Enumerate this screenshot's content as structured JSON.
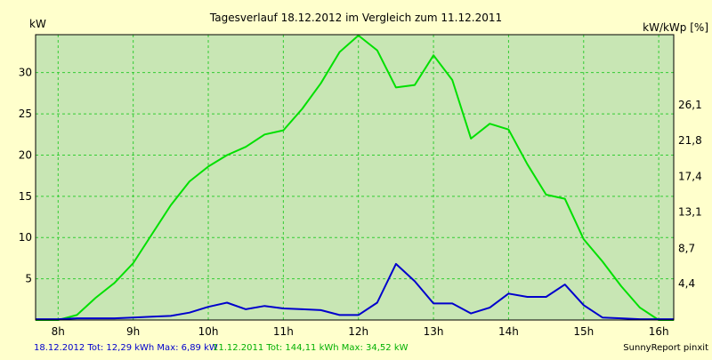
{
  "chart_data": {
    "type": "line",
    "title": "Tagesverlauf 18.12.2012 im Vergleich zum 11.12.2011",
    "ylabel_left": "kW",
    "ylabel_right": "kW/kWp [%]",
    "xlim": [
      7.7,
      16.2
    ],
    "ylim": [
      0,
      34.6
    ],
    "x_ticks": [
      8,
      9,
      10,
      11,
      12,
      13,
      14,
      15,
      16
    ],
    "x_tick_labels": [
      "8h",
      "9h",
      "10h",
      "11h",
      "12h",
      "13h",
      "14h",
      "15h",
      "16h"
    ],
    "y_ticks_left": [
      5,
      10,
      15,
      20,
      25,
      30
    ],
    "y_tick_labels_left": [
      "5",
      "10",
      "15",
      "20",
      "25",
      "30"
    ],
    "y_ticks_right_kw": [
      4.4,
      8.7,
      13.1,
      17.4,
      21.8,
      26.1
    ],
    "y_tick_labels_right": [
      "4,4",
      "8,7",
      "13,1",
      "17,4",
      "21,8",
      "26,1"
    ],
    "grid": true,
    "colors": {
      "background": "#ffffcc",
      "plot_background": "#c8e6b4",
      "grid": "#33cc33",
      "series_2012": "#0000cc",
      "series_2011": "#00e000",
      "text": "#000000"
    },
    "series": [
      {
        "name": "18.12.2012",
        "color": "#0000cc",
        "x": [
          7.7,
          8.0,
          8.25,
          8.5,
          8.75,
          9.0,
          9.25,
          9.5,
          9.75,
          10.0,
          10.25,
          10.5,
          10.75,
          11.0,
          11.25,
          11.5,
          11.75,
          12.0,
          12.25,
          12.5,
          12.75,
          13.0,
          13.25,
          13.5,
          13.75,
          14.0,
          14.25,
          14.5,
          14.75,
          15.0,
          15.25,
          15.5,
          15.75,
          16.0,
          16.2
        ],
        "y": [
          0.1,
          0.1,
          0.2,
          0.2,
          0.2,
          0.3,
          0.4,
          0.5,
          0.9,
          1.6,
          2.1,
          1.3,
          1.7,
          1.4,
          1.3,
          1.2,
          0.6,
          0.6,
          2.1,
          6.8,
          4.7,
          2.0,
          2.0,
          0.8,
          1.5,
          3.2,
          2.8,
          2.8,
          4.3,
          1.8,
          0.3,
          0.2,
          0.1,
          0.1,
          0.1
        ]
      },
      {
        "name": "11.12.2011",
        "color": "#00e000",
        "x": [
          7.7,
          8.0,
          8.25,
          8.5,
          8.75,
          9.0,
          9.25,
          9.5,
          9.75,
          10.0,
          10.25,
          10.5,
          10.75,
          11.0,
          11.25,
          11.5,
          11.75,
          12.0,
          12.25,
          12.5,
          12.75,
          13.0,
          13.25,
          13.5,
          13.75,
          14.0,
          14.25,
          14.5,
          14.75,
          15.0,
          15.25,
          15.5,
          15.75,
          16.0,
          16.2
        ],
        "y": [
          0.0,
          0.0,
          0.6,
          2.7,
          4.5,
          6.9,
          10.4,
          13.9,
          16.8,
          18.6,
          20.0,
          21.0,
          22.5,
          23.0,
          25.6,
          28.7,
          32.5,
          34.5,
          32.7,
          28.2,
          28.5,
          32.1,
          29.1,
          22.0,
          23.8,
          23.1,
          18.9,
          15.2,
          14.7,
          9.8,
          7.1,
          4.1,
          1.5,
          0.0,
          0.0
        ]
      }
    ]
  },
  "footer": {
    "legend_2012": "18.12.2012 Tot: 12,29 kWh Max: 6,89 kW",
    "legend_2011": "11.12.2011 Tot: 144,11 kWh Max: 34,52 kW",
    "credit": "SunnyReport pinxit"
  }
}
